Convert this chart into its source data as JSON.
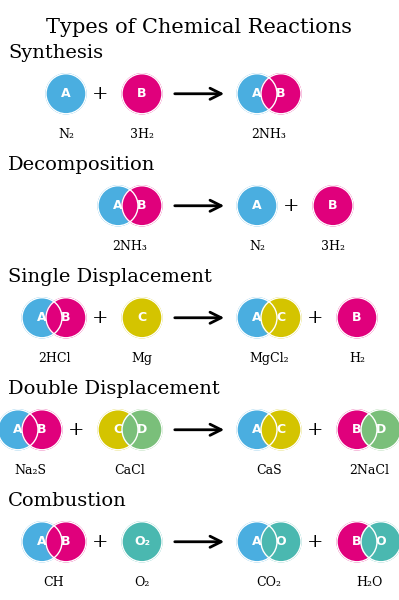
{
  "title": "Types of Chemical Reactions",
  "title_fontsize": 15,
  "background_color": "#ffffff",
  "header_fontsize": 14,
  "label_fontsize": 9,
  "letter_fontsize": 9,
  "sections": [
    {
      "name": "Synthesis",
      "reactants": [
        {
          "atoms": [
            {
              "letter": "A",
              "color": "#4aaee0"
            }
          ],
          "label": "N₂"
        },
        {
          "atoms": [
            {
              "letter": "B",
              "color": "#e0007c"
            }
          ],
          "label": "3H₂"
        }
      ],
      "products": [
        {
          "atoms": [
            {
              "letter": "A",
              "color": "#4aaee0"
            },
            {
              "letter": "B",
              "color": "#e0007c"
            }
          ],
          "label": "2NH₃"
        }
      ]
    },
    {
      "name": "Decomposition",
      "reactants": [
        {
          "atoms": [
            {
              "letter": "A",
              "color": "#4aaee0"
            },
            {
              "letter": "B",
              "color": "#e0007c"
            }
          ],
          "label": "2NH₃"
        }
      ],
      "products": [
        {
          "atoms": [
            {
              "letter": "A",
              "color": "#4aaee0"
            }
          ],
          "label": "N₂"
        },
        {
          "atoms": [
            {
              "letter": "B",
              "color": "#e0007c"
            }
          ],
          "label": "3H₂"
        }
      ]
    },
    {
      "name": "Single Displacement",
      "reactants": [
        {
          "atoms": [
            {
              "letter": "A",
              "color": "#4aaee0"
            },
            {
              "letter": "B",
              "color": "#e0007c"
            }
          ],
          "label": "2HCl"
        },
        {
          "atoms": [
            {
              "letter": "C",
              "color": "#d4c400"
            }
          ],
          "label": "Mg"
        }
      ],
      "products": [
        {
          "atoms": [
            {
              "letter": "A",
              "color": "#4aaee0"
            },
            {
              "letter": "C",
              "color": "#d4c400"
            }
          ],
          "label": "MgCl₂"
        },
        {
          "atoms": [
            {
              "letter": "B",
              "color": "#e0007c"
            }
          ],
          "label": "H₂"
        }
      ]
    },
    {
      "name": "Double Displacement",
      "reactants": [
        {
          "atoms": [
            {
              "letter": "A",
              "color": "#4aaee0"
            },
            {
              "letter": "B",
              "color": "#e0007c"
            }
          ],
          "label": "Na₂S"
        },
        {
          "atoms": [
            {
              "letter": "C",
              "color": "#d4c400"
            },
            {
              "letter": "D",
              "color": "#7abf7a"
            }
          ],
          "label": "CaCl"
        }
      ],
      "products": [
        {
          "atoms": [
            {
              "letter": "A",
              "color": "#4aaee0"
            },
            {
              "letter": "C",
              "color": "#d4c400"
            }
          ],
          "label": "CaS"
        },
        {
          "atoms": [
            {
              "letter": "B",
              "color": "#e0007c"
            },
            {
              "letter": "D",
              "color": "#7abf7a"
            }
          ],
          "label": "2NaCl"
        }
      ]
    },
    {
      "name": "Combustion",
      "reactants": [
        {
          "atoms": [
            {
              "letter": "A",
              "color": "#4aaee0"
            },
            {
              "letter": "B",
              "color": "#e0007c"
            }
          ],
          "label": "CH"
        },
        {
          "atoms": [
            {
              "letter": "O₂",
              "color": "#4ab8b0"
            }
          ],
          "label": "O₂"
        }
      ],
      "products": [
        {
          "atoms": [
            {
              "letter": "A",
              "color": "#4aaee0"
            },
            {
              "letter": "O",
              "color": "#4ab8b0"
            }
          ],
          "label": "CO₂"
        },
        {
          "atoms": [
            {
              "letter": "B",
              "color": "#e0007c"
            },
            {
              "letter": "O",
              "color": "#4ab8b0"
            }
          ],
          "label": "H₂O"
        }
      ]
    }
  ]
}
